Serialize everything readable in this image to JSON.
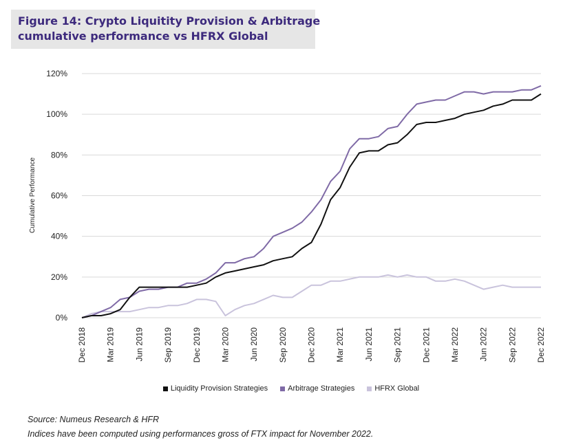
{
  "title": {
    "line1": "Figure 14: Crypto Liquitity Provision & Arbitrage",
    "line2": "cumulative performance vs HFRX Global"
  },
  "notes": {
    "source": "Source: Numeus Research & HFR",
    "disclaimer": "Indices have been computed using performances gross of FTX impact for November 2022."
  },
  "colors": {
    "liquidity": "#111111",
    "arbitrage": "#7f6aa6",
    "hfrx": "#c9c3dc",
    "grid": "#d9d9d9"
  },
  "chart_data": {
    "type": "line",
    "title": "Figure 14: Crypto Liquitity Provision & Arbitrage cumulative performance vs HFRX Global",
    "xlabel": "",
    "ylabel": "Cumulative Performance",
    "ylim": [
      0,
      120
    ],
    "yticks": [
      "0%",
      "20%",
      "40%",
      "60%",
      "80%",
      "100%",
      "120%"
    ],
    "xtick_labels": [
      "Dec 2018",
      "Mar 2019",
      "Jun 2019",
      "Sep 2019",
      "Dec 2019",
      "Mar 2020",
      "Jun 2020",
      "Sep 2020",
      "Dec 2020",
      "Mar 2021",
      "Jun 2021",
      "Sep 2021",
      "Dec 2021",
      "Mar 2022",
      "Jun 2022",
      "Sep 2022",
      "Dec 2022"
    ],
    "x": [
      "Dec 2018",
      "Jan 2019",
      "Feb 2019",
      "Mar 2019",
      "Apr 2019",
      "May 2019",
      "Jun 2019",
      "Jul 2019",
      "Aug 2019",
      "Sep 2019",
      "Oct 2019",
      "Nov 2019",
      "Dec 2019",
      "Jan 2020",
      "Feb 2020",
      "Mar 2020",
      "Apr 2020",
      "May 2020",
      "Jun 2020",
      "Jul 2020",
      "Aug 2020",
      "Sep 2020",
      "Oct 2020",
      "Nov 2020",
      "Dec 2020",
      "Jan 2021",
      "Feb 2021",
      "Mar 2021",
      "Apr 2021",
      "May 2021",
      "Jun 2021",
      "Jul 2021",
      "Aug 2021",
      "Sep 2021",
      "Oct 2021",
      "Nov 2021",
      "Dec 2021",
      "Jan 2022",
      "Feb 2022",
      "Mar 2022",
      "Apr 2022",
      "May 2022",
      "Jun 2022",
      "Jul 2022",
      "Aug 2022",
      "Sep 2022",
      "Oct 2022",
      "Nov 2022",
      "Dec 2022"
    ],
    "grid": true,
    "legend_position": "bottom",
    "series": [
      {
        "name": "Liquidity Provision Strategies",
        "values": [
          0,
          1,
          1,
          2,
          4,
          10,
          15,
          15,
          15,
          15,
          15,
          15,
          16,
          17,
          20,
          22,
          23,
          24,
          25,
          26,
          28,
          29,
          30,
          34,
          37,
          46,
          58,
          64,
          74,
          81,
          82,
          82,
          85,
          86,
          90,
          95,
          96,
          96,
          97,
          98,
          100,
          101,
          102,
          104,
          105,
          107,
          107,
          107,
          110
        ]
      },
      {
        "name": "Arbitrage Strategies",
        "values": [
          0,
          1,
          3,
          5,
          9,
          10,
          13,
          14,
          14,
          15,
          15,
          17,
          17,
          19,
          22,
          27,
          27,
          29,
          30,
          34,
          40,
          42,
          44,
          47,
          52,
          58,
          67,
          72,
          83,
          88,
          88,
          89,
          93,
          94,
          100,
          105,
          106,
          107,
          107,
          109,
          111,
          111,
          110,
          111,
          111,
          111,
          112,
          112,
          114
        ]
      },
      {
        "name": "HFRX Global",
        "values": [
          0,
          2,
          3,
          3,
          3,
          3,
          4,
          5,
          5,
          6,
          6,
          7,
          9,
          9,
          8,
          1,
          4,
          6,
          7,
          9,
          11,
          10,
          10,
          13,
          16,
          16,
          18,
          18,
          19,
          20,
          20,
          20,
          21,
          20,
          21,
          20,
          20,
          18,
          18,
          19,
          18,
          16,
          14,
          15,
          16,
          15,
          15,
          15,
          15
        ]
      }
    ]
  }
}
